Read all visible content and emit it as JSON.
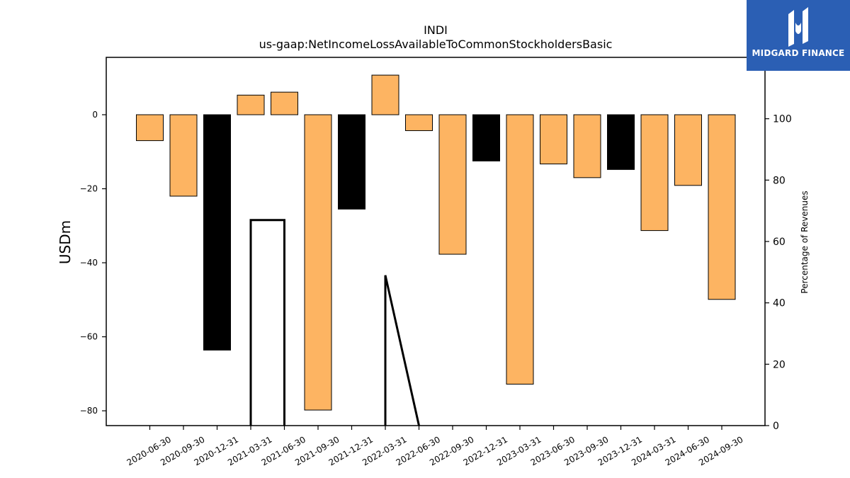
{
  "chart_data": {
    "type": "bar",
    "title": "INDI",
    "subtitle": "us-gaap:NetIncomeLossAvailableToCommonStockholdersBasic",
    "ylabel": "USDm",
    "ylabel_right": "Percentage of Revenues",
    "categories": [
      "2020-06-30",
      "2020-09-30",
      "2020-12-31",
      "2021-03-31",
      "2021-06-30",
      "2021-09-30",
      "2021-12-31",
      "2022-03-31",
      "2022-06-30",
      "2022-09-30",
      "2022-12-31",
      "2023-03-31",
      "2023-06-30",
      "2023-09-30",
      "2023-12-31",
      "2024-03-31",
      "2024-06-30",
      "2024-09-30"
    ],
    "values": [
      -7.0,
      -22.0,
      -63.6,
      5.3,
      6.1,
      -79.8,
      -25.5,
      10.7,
      -4.3,
      -37.7,
      -12.5,
      -72.8,
      -13.3,
      -17.0,
      -14.8,
      -31.3,
      -19.1,
      -49.9
    ],
    "bar_colors": [
      "#fdb462",
      "#fdb462",
      "#000000",
      "#fdb462",
      "#fdb462",
      "#fdb462",
      "#000000",
      "#fdb462",
      "#fdb462",
      "#fdb462",
      "#000000",
      "#fdb462",
      "#fdb462",
      "#fdb462",
      "#000000",
      "#fdb462",
      "#fdb462",
      "#fdb462"
    ],
    "ylim": [
      -84,
      15.5
    ],
    "yticks": [
      0,
      -20,
      -40,
      -60,
      -80
    ],
    "ytick_labels": [
      "0",
      "−20",
      "−40",
      "−60",
      "−80"
    ],
    "y2lim": [
      0,
      120
    ],
    "y2ticks": [
      0,
      20,
      40,
      60,
      80,
      100
    ],
    "line_series": {
      "segments": [
        [
          [
            3,
            0
          ],
          [
            3,
            67
          ],
          [
            4,
            67
          ],
          [
            4,
            0
          ]
        ],
        [
          [
            7,
            0
          ],
          [
            7,
            49
          ],
          [
            8,
            0
          ]
        ]
      ],
      "color": "#000000"
    },
    "grid": false,
    "legend": "none"
  },
  "logo": {
    "text": "MIDGARD FINANCE",
    "background": "#2b5fb4"
  }
}
